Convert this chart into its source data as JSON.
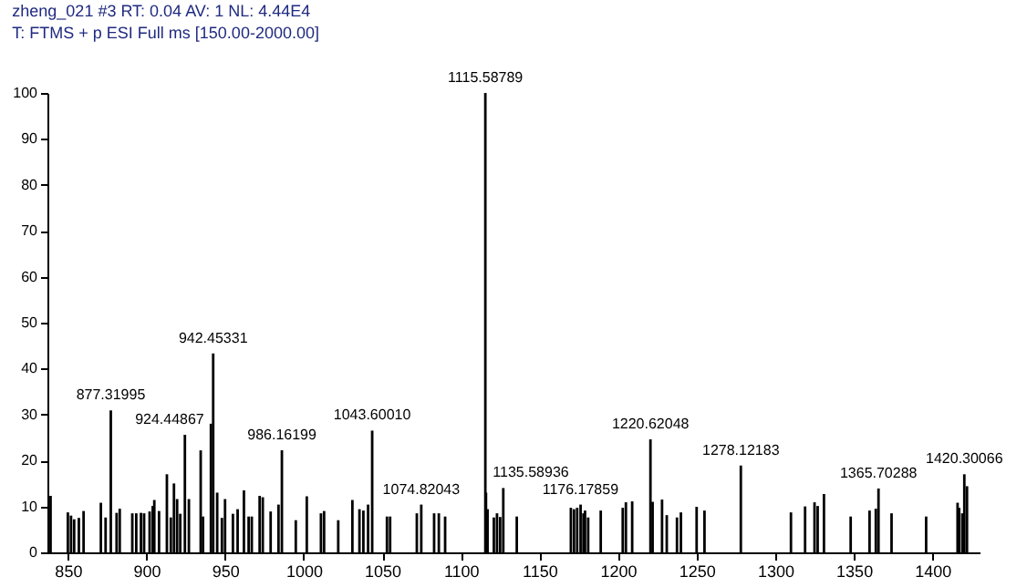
{
  "chart_data": {
    "type": "bar",
    "title": "zheng_021 #3  RT: 0.04  AV: 1  NL: 4.44E4",
    "subtitle": "T: FTMS + p ESI Full ms [150.00-2000.00]",
    "x": [
      839,
      850,
      852,
      854,
      857,
      860,
      871,
      874,
      877.32,
      881,
      883,
      891,
      893.5,
      896.5,
      898.5,
      902,
      904,
      905,
      908,
      913,
      915.5,
      917.5,
      919.5,
      921.5,
      924.45,
      927,
      934.5,
      936,
      941,
      942.45,
      945,
      948,
      950,
      955,
      958,
      962,
      965,
      967,
      972,
      974,
      979,
      984,
      986.16,
      995,
      1002,
      1011,
      1013,
      1022,
      1031,
      1035.5,
      1038,
      1041,
      1043.6,
      1053,
      1055,
      1072,
      1074.82,
      1083,
      1086,
      1090,
      1115.59,
      1116,
      1117,
      1121,
      1123,
      1125,
      1127,
      1135.59,
      1170,
      1172,
      1174,
      1176.18,
      1178,
      1179,
      1181,
      1189,
      1203,
      1205,
      1209,
      1220.62,
      1222,
      1228,
      1231,
      1237.5,
      1240,
      1250,
      1255,
      1278.12,
      1310,
      1319,
      1325,
      1327,
      1331,
      1348,
      1360,
      1364,
      1365.7,
      1374,
      1396,
      1416,
      1417,
      1419,
      1420.3,
      1422
    ],
    "series": [
      {
        "color": "#000000",
        "values": [
          12.3,
          8.7,
          8,
          7.2,
          7.5,
          9,
          10.8,
          7.6,
          30.9,
          8.6,
          9.5,
          8.5,
          8.5,
          8.6,
          8.5,
          8.9,
          10.1,
          11.4,
          9,
          17,
          7.6,
          15,
          11.6,
          8.4,
          25.6,
          11.6,
          22.2,
          7.8,
          28,
          43.3,
          13,
          7.5,
          11.6,
          8.4,
          9.4,
          13.5,
          7.8,
          7.8,
          12.3,
          12,
          8.9,
          10.4,
          22.2,
          7,
          12.2,
          8.5,
          9,
          7,
          11.4,
          9.4,
          9.1,
          10.4,
          26.5,
          7.8,
          7.8,
          8.5,
          10.4,
          8.5,
          8.5,
          7.8,
          100,
          13,
          9.4,
          7.6,
          8.5,
          7.7,
          14,
          7.8,
          9.7,
          9.4,
          9.7,
          10.4,
          8.5,
          9.1,
          7.6,
          9.1,
          9.7,
          10.9,
          11.1,
          24.6,
          11,
          11.5,
          8.1,
          7.6,
          8.7,
          9.9,
          9.1,
          18.9,
          8.7,
          10,
          10.9,
          10.1,
          12.7,
          7.8,
          9.1,
          9.5,
          13.9,
          8.5,
          7.8,
          10.8,
          9.7,
          8.5,
          17,
          14.4
        ]
      }
    ],
    "xlim": [
      837,
      1430
    ],
    "ylim": [
      0,
      100
    ],
    "xticks": [
      850,
      900,
      950,
      1000,
      1050,
      1100,
      1150,
      1200,
      1250,
      1300,
      1350,
      1400
    ],
    "yticks": [
      0,
      10,
      20,
      30,
      40,
      50,
      60,
      70,
      80,
      90,
      100
    ],
    "grid": false,
    "annotations": [
      {
        "text": "877.31995",
        "x": 877.32,
        "y": 30.9
      },
      {
        "text": "924.44867",
        "x": 924.45,
        "y": 25.6
      },
      {
        "text": "942.45331",
        "x": 942.45,
        "y": 43.3
      },
      {
        "text": "986.16199",
        "x": 986.16,
        "y": 22.2
      },
      {
        "text": "1043.60010",
        "x": 1043.6,
        "y": 26.5
      },
      {
        "text": "1074.82043",
        "x": 1074.82,
        "y": 10.4
      },
      {
        "text": "1115.58789",
        "x": 1115.59,
        "y": 100
      },
      {
        "text": "1135.58936",
        "x": 1135.59,
        "y": 7.8
      },
      {
        "text": "1176.17859",
        "x": 1176.18,
        "y": 10.4
      },
      {
        "text": "1220.62048",
        "x": 1220.62,
        "y": 24.6
      },
      {
        "text": "1278.12183",
        "x": 1278.12,
        "y": 18.9
      },
      {
        "text": "1365.70288",
        "x": 1365.7,
        "y": 13.9
      },
      {
        "text": "1420.30066",
        "x": 1420.3,
        "y": 17
      }
    ]
  }
}
